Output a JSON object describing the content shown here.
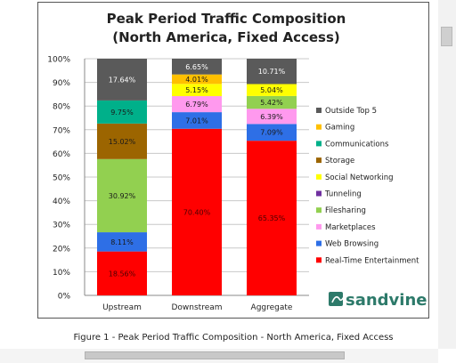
{
  "chart_data": {
    "type": "stacked-bar",
    "title_line1": "Peak Period Traffic Composition",
    "title_line2": "(North America, Fixed Access)",
    "categories": [
      "Upstream",
      "Downstream",
      "Aggregate"
    ],
    "yticks": [
      "0%",
      "10%",
      "20%",
      "30%",
      "40%",
      "50%",
      "60%",
      "70%",
      "80%",
      "90%",
      "100%"
    ],
    "ylim": [
      0,
      100
    ],
    "legend_position": "right",
    "series": [
      {
        "name": "Real-Time Entertainment",
        "color": "#ff0000",
        "values": [
          18.56,
          70.4,
          65.35
        ],
        "labels": [
          "18.56%",
          "70.40%",
          "65.35%"
        ]
      },
      {
        "name": "Web Browsing",
        "color": "#2e6fe6",
        "values": [
          8.11,
          7.01,
          7.09
        ],
        "labels": [
          "8.11%",
          "7.01%",
          "7.09%"
        ]
      },
      {
        "name": "Marketplaces",
        "color": "#ff99ee",
        "values": [
          0,
          6.79,
          6.39
        ],
        "labels": [
          "",
          "6.79%",
          "6.39%"
        ]
      },
      {
        "name": "Filesharing",
        "color": "#92d050",
        "values": [
          30.92,
          0,
          5.42
        ],
        "labels": [
          "30.92%",
          "",
          "5.42%"
        ]
      },
      {
        "name": "Tunneling",
        "color": "#7030a0",
        "values": [
          0,
          0,
          0
        ],
        "labels": [
          "",
          "",
          ""
        ]
      },
      {
        "name": "Social Networking",
        "color": "#ffff00",
        "values": [
          0,
          5.15,
          5.04
        ],
        "labels": [
          "",
          "5.15%",
          "5.04%"
        ]
      },
      {
        "name": "Storage",
        "color": "#9c6500",
        "values": [
          15.02,
          0,
          0
        ],
        "labels": [
          "15.02%",
          "",
          ""
        ]
      },
      {
        "name": "Communications",
        "color": "#00b08a",
        "values": [
          9.75,
          0,
          0
        ],
        "labels": [
          "9.75%",
          "",
          ""
        ]
      },
      {
        "name": "Gaming",
        "color": "#ffc000",
        "values": [
          0,
          4.01,
          0
        ],
        "labels": [
          "",
          "4.01%",
          ""
        ]
      },
      {
        "name": "Outside Top 5",
        "color": "#5a5a5a",
        "values": [
          17.64,
          6.65,
          10.71
        ],
        "labels": [
          "17.64%",
          "6.65%",
          "10.71%"
        ]
      }
    ],
    "legend_order": [
      "Outside Top 5",
      "Gaming",
      "Communications",
      "Storage",
      "Social Networking",
      "Tunneling",
      "Filesharing",
      "Marketplaces",
      "Web Browsing",
      "Real-Time Entertainment"
    ],
    "logo_text": "sandvine"
  },
  "caption": "Figure 1 - Peak Period Traffic Composition - North America, Fixed Access"
}
